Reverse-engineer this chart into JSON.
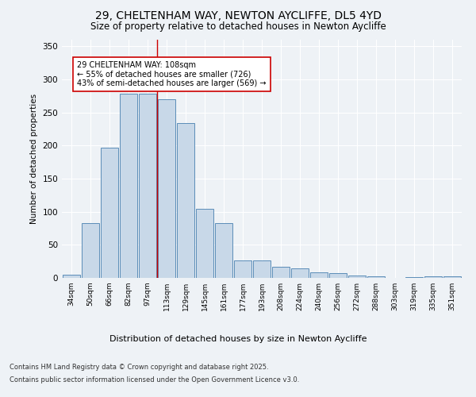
{
  "title_line1": "29, CHELTENHAM WAY, NEWTON AYCLIFFE, DL5 4YD",
  "title_line2": "Size of property relative to detached houses in Newton Aycliffe",
  "xlabel": "Distribution of detached houses by size in Newton Aycliffe",
  "ylabel": "Number of detached properties",
  "categories": [
    "34sqm",
    "50sqm",
    "66sqm",
    "82sqm",
    "97sqm",
    "113sqm",
    "129sqm",
    "145sqm",
    "161sqm",
    "177sqm",
    "193sqm",
    "208sqm",
    "224sqm",
    "240sqm",
    "256sqm",
    "272sqm",
    "288sqm",
    "303sqm",
    "319sqm",
    "335sqm",
    "351sqm"
  ],
  "values": [
    5,
    83,
    197,
    278,
    278,
    270,
    234,
    104,
    83,
    27,
    27,
    17,
    14,
    8,
    7,
    4,
    2,
    0,
    1,
    2,
    2
  ],
  "bar_color": "#c8d8e8",
  "bar_edge_color": "#5b8db8",
  "vline_x": 4.5,
  "vline_color": "#cc0000",
  "annotation_text": "29 CHELTENHAM WAY: 108sqm\n← 55% of detached houses are smaller (726)\n43% of semi-detached houses are larger (569) →",
  "ylim": [
    0,
    360
  ],
  "yticks": [
    0,
    50,
    100,
    150,
    200,
    250,
    300,
    350
  ],
  "background_color": "#eef2f6",
  "grid_color": "#ffffff",
  "footer_line1": "Contains HM Land Registry data © Crown copyright and database right 2025.",
  "footer_line2": "Contains public sector information licensed under the Open Government Licence v3.0."
}
